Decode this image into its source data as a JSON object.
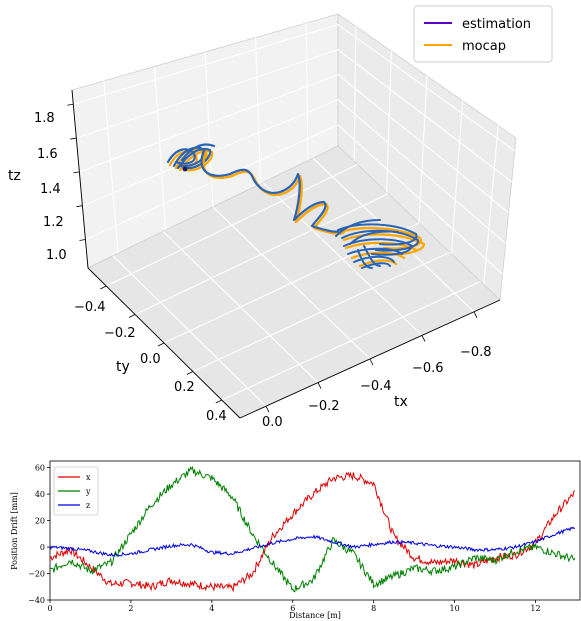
{
  "chart_data": [
    {
      "type": "line3d",
      "xlabel": "tx",
      "ylabel": "ty",
      "zlabel": "tz",
      "x_ticks": [
        "−0.8",
        "−0.6",
        "−0.4",
        "−0.2",
        "0.0"
      ],
      "y_ticks": [
        "−0.4",
        "−0.2",
        "0.0",
        "0.2",
        "0.4"
      ],
      "z_ticks": [
        "1.0",
        "1.2",
        "1.4",
        "1.6",
        "1.8"
      ],
      "legend_position": "top-right",
      "series": [
        {
          "name": "estimation",
          "color": "#5a00c8"
        },
        {
          "name": "mocap",
          "color": "#ffa500"
        }
      ],
      "trajectory_color_visible": "#2a64b4",
      "grid": true
    },
    {
      "type": "line",
      "xlabel": "Distance [m]",
      "ylabel": "Position Drift [mm]",
      "xlim": [
        0,
        13.1
      ],
      "ylim": [
        -40,
        65
      ],
      "x_ticks": [
        "0",
        "2",
        "4",
        "6",
        "8",
        "10",
        "12"
      ],
      "y_ticks": [
        "60",
        "40",
        "20",
        "0",
        "−20",
        "−40"
      ],
      "legend_position": "top-left",
      "series": [
        {
          "name": "x",
          "color": "#e00000",
          "x": [
            0,
            0.5,
            1,
            1.5,
            2,
            2.5,
            3,
            3.5,
            4,
            4.5,
            5,
            5.5,
            6,
            6.5,
            7,
            7.5,
            8,
            8.5,
            9,
            9.5,
            10,
            10.5,
            11,
            11.5,
            12,
            12.5,
            13
          ],
          "values": [
            -8,
            -2,
            -15,
            -28,
            -27,
            -30,
            -25,
            -28,
            -30,
            -31,
            -20,
            8,
            25,
            40,
            52,
            54,
            48,
            8,
            -8,
            -12,
            -10,
            -14,
            -8,
            -6,
            3,
            25,
            42
          ]
        },
        {
          "name": "y",
          "color": "#008000",
          "x": [
            0,
            0.5,
            1,
            1.5,
            2,
            2.5,
            3,
            3.5,
            4,
            4.5,
            5,
            5.5,
            6,
            6.5,
            7,
            7.5,
            8,
            8.5,
            9,
            9.5,
            10,
            10.5,
            11,
            11.5,
            12,
            12.5,
            13
          ],
          "values": [
            -18,
            -10,
            -18,
            -12,
            10,
            32,
            47,
            58,
            52,
            38,
            10,
            -12,
            -32,
            -25,
            5,
            -5,
            -28,
            -22,
            -16,
            -18,
            -15,
            -8,
            -10,
            -3,
            0,
            -5,
            -10
          ]
        },
        {
          "name": "z",
          "color": "#0000e0",
          "x": [
            0,
            0.5,
            1,
            1.5,
            2,
            2.5,
            3,
            3.5,
            4,
            4.5,
            5,
            5.5,
            6,
            6.5,
            7,
            7.5,
            8,
            8.5,
            9,
            9.5,
            10,
            10.5,
            11,
            11.5,
            12,
            12.5,
            13
          ],
          "values": [
            0,
            -1,
            -3,
            -6,
            -5,
            -2,
            1,
            2,
            -4,
            -5,
            -1,
            3,
            6,
            8,
            4,
            0,
            2,
            4,
            3,
            1,
            0,
            -2,
            -2,
            0,
            4,
            10,
            15
          ]
        }
      ]
    }
  ]
}
